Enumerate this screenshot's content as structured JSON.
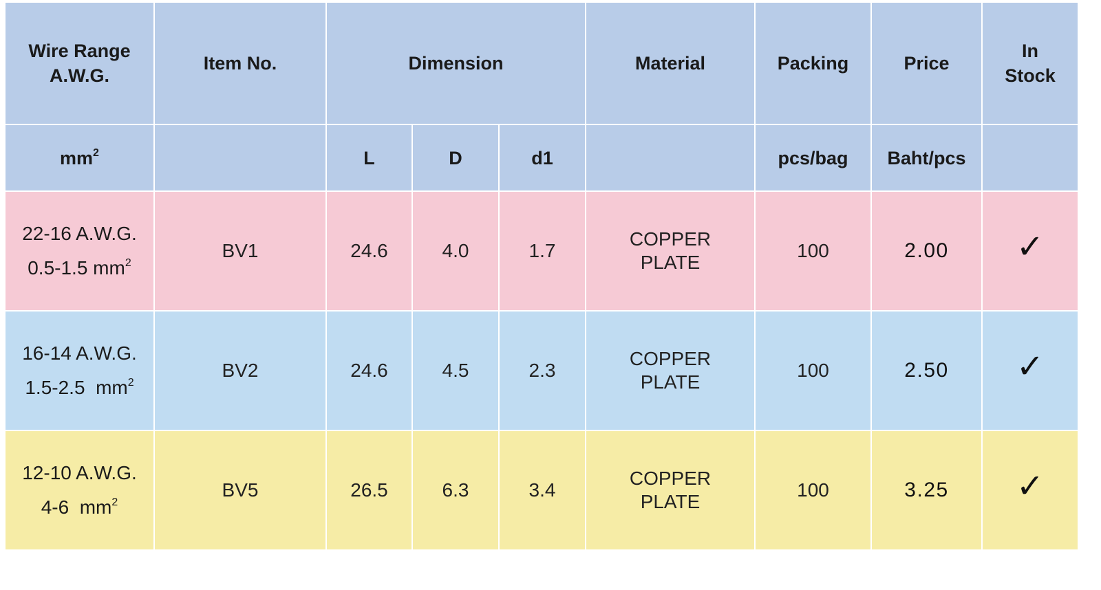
{
  "header": {
    "row1": {
      "wire_range_line1": "Wire Range",
      "wire_range_line2": "A.W.G.",
      "item_no": "Item No.",
      "dimension": "Dimension",
      "material": "Material",
      "packing": "Packing",
      "price": "Price",
      "in_stock_line1": "In",
      "in_stock_line2": "Stock"
    },
    "row2": {
      "unit_mm": "mm",
      "unit_mm_sup": "2",
      "dim_L": "L",
      "dim_D": "D",
      "dim_d1": "d1",
      "packing_unit": "pcs/bag",
      "price_unit": "Baht/pcs"
    }
  },
  "rows": [
    {
      "awg": "22-16 A.W.G.",
      "mm_value": "0.5-1.5 mm",
      "mm_sup": "2",
      "item_no": "BV1",
      "L": "24.6",
      "D": "4.0",
      "d1": "1.7",
      "material_line1": "COPPER",
      "material_line2": "PLATE",
      "packing": "100",
      "price": "2.00",
      "in_stock": "✓",
      "row_color": "#f6cad5"
    },
    {
      "awg": "16-14 A.W.G.",
      "mm_value": "1.5-2.5  mm",
      "mm_sup": "2",
      "item_no": "BV2",
      "L": "24.6",
      "D": "4.5",
      "d1": "2.3",
      "material_line1": "COPPER",
      "material_line2": "PLATE",
      "packing": "100",
      "price": "2.50",
      "in_stock": "✓",
      "row_color": "#c0dcf2"
    },
    {
      "awg": "12-10 A.W.G.",
      "mm_value": "4-6  mm",
      "mm_sup": "2",
      "item_no": "BV5",
      "L": "26.5",
      "D": "6.3",
      "d1": "3.4",
      "material_line1": "COPPER",
      "material_line2": "PLATE",
      "packing": "100",
      "price": "3.25",
      "in_stock": "✓",
      "row_color": "#f6eca6"
    }
  ],
  "colors": {
    "header_bg": "#b8cce8",
    "grid_lines": "#ffffff"
  },
  "icons": {
    "in_stock": "check-mark-icon"
  }
}
